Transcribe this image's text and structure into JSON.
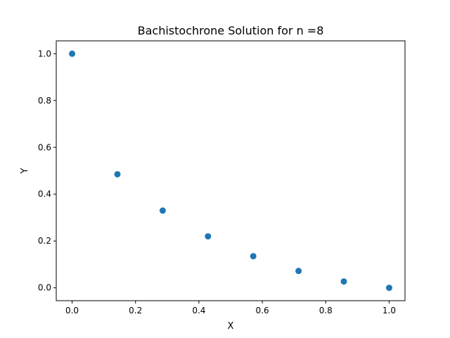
{
  "chart_data": {
    "type": "scatter",
    "title": "Bachistochrone Solution for n =8",
    "xlabel": "X",
    "ylabel": "Y",
    "xlim": [
      -0.05,
      1.05
    ],
    "ylim": [
      -0.055,
      1.055
    ],
    "xticks": [
      0.0,
      0.2,
      0.4,
      0.6,
      0.8,
      1.0
    ],
    "yticks": [
      0.0,
      0.2,
      0.4,
      0.6,
      0.8,
      1.0
    ],
    "xtick_labels": [
      "0.0",
      "0.2",
      "0.4",
      "0.6",
      "0.8",
      "1.0"
    ],
    "ytick_labels": [
      "0.0",
      "0.2",
      "0.4",
      "0.6",
      "0.8",
      "1.0"
    ],
    "grid": false,
    "series": [
      {
        "color": "#1f77b4",
        "marker": "circle",
        "x": [
          0.0,
          0.1429,
          0.2857,
          0.4286,
          0.5714,
          0.7143,
          0.8571,
          1.0
        ],
        "y": [
          1.0,
          0.485,
          0.33,
          0.22,
          0.135,
          0.072,
          0.027,
          0.0
        ]
      }
    ]
  }
}
